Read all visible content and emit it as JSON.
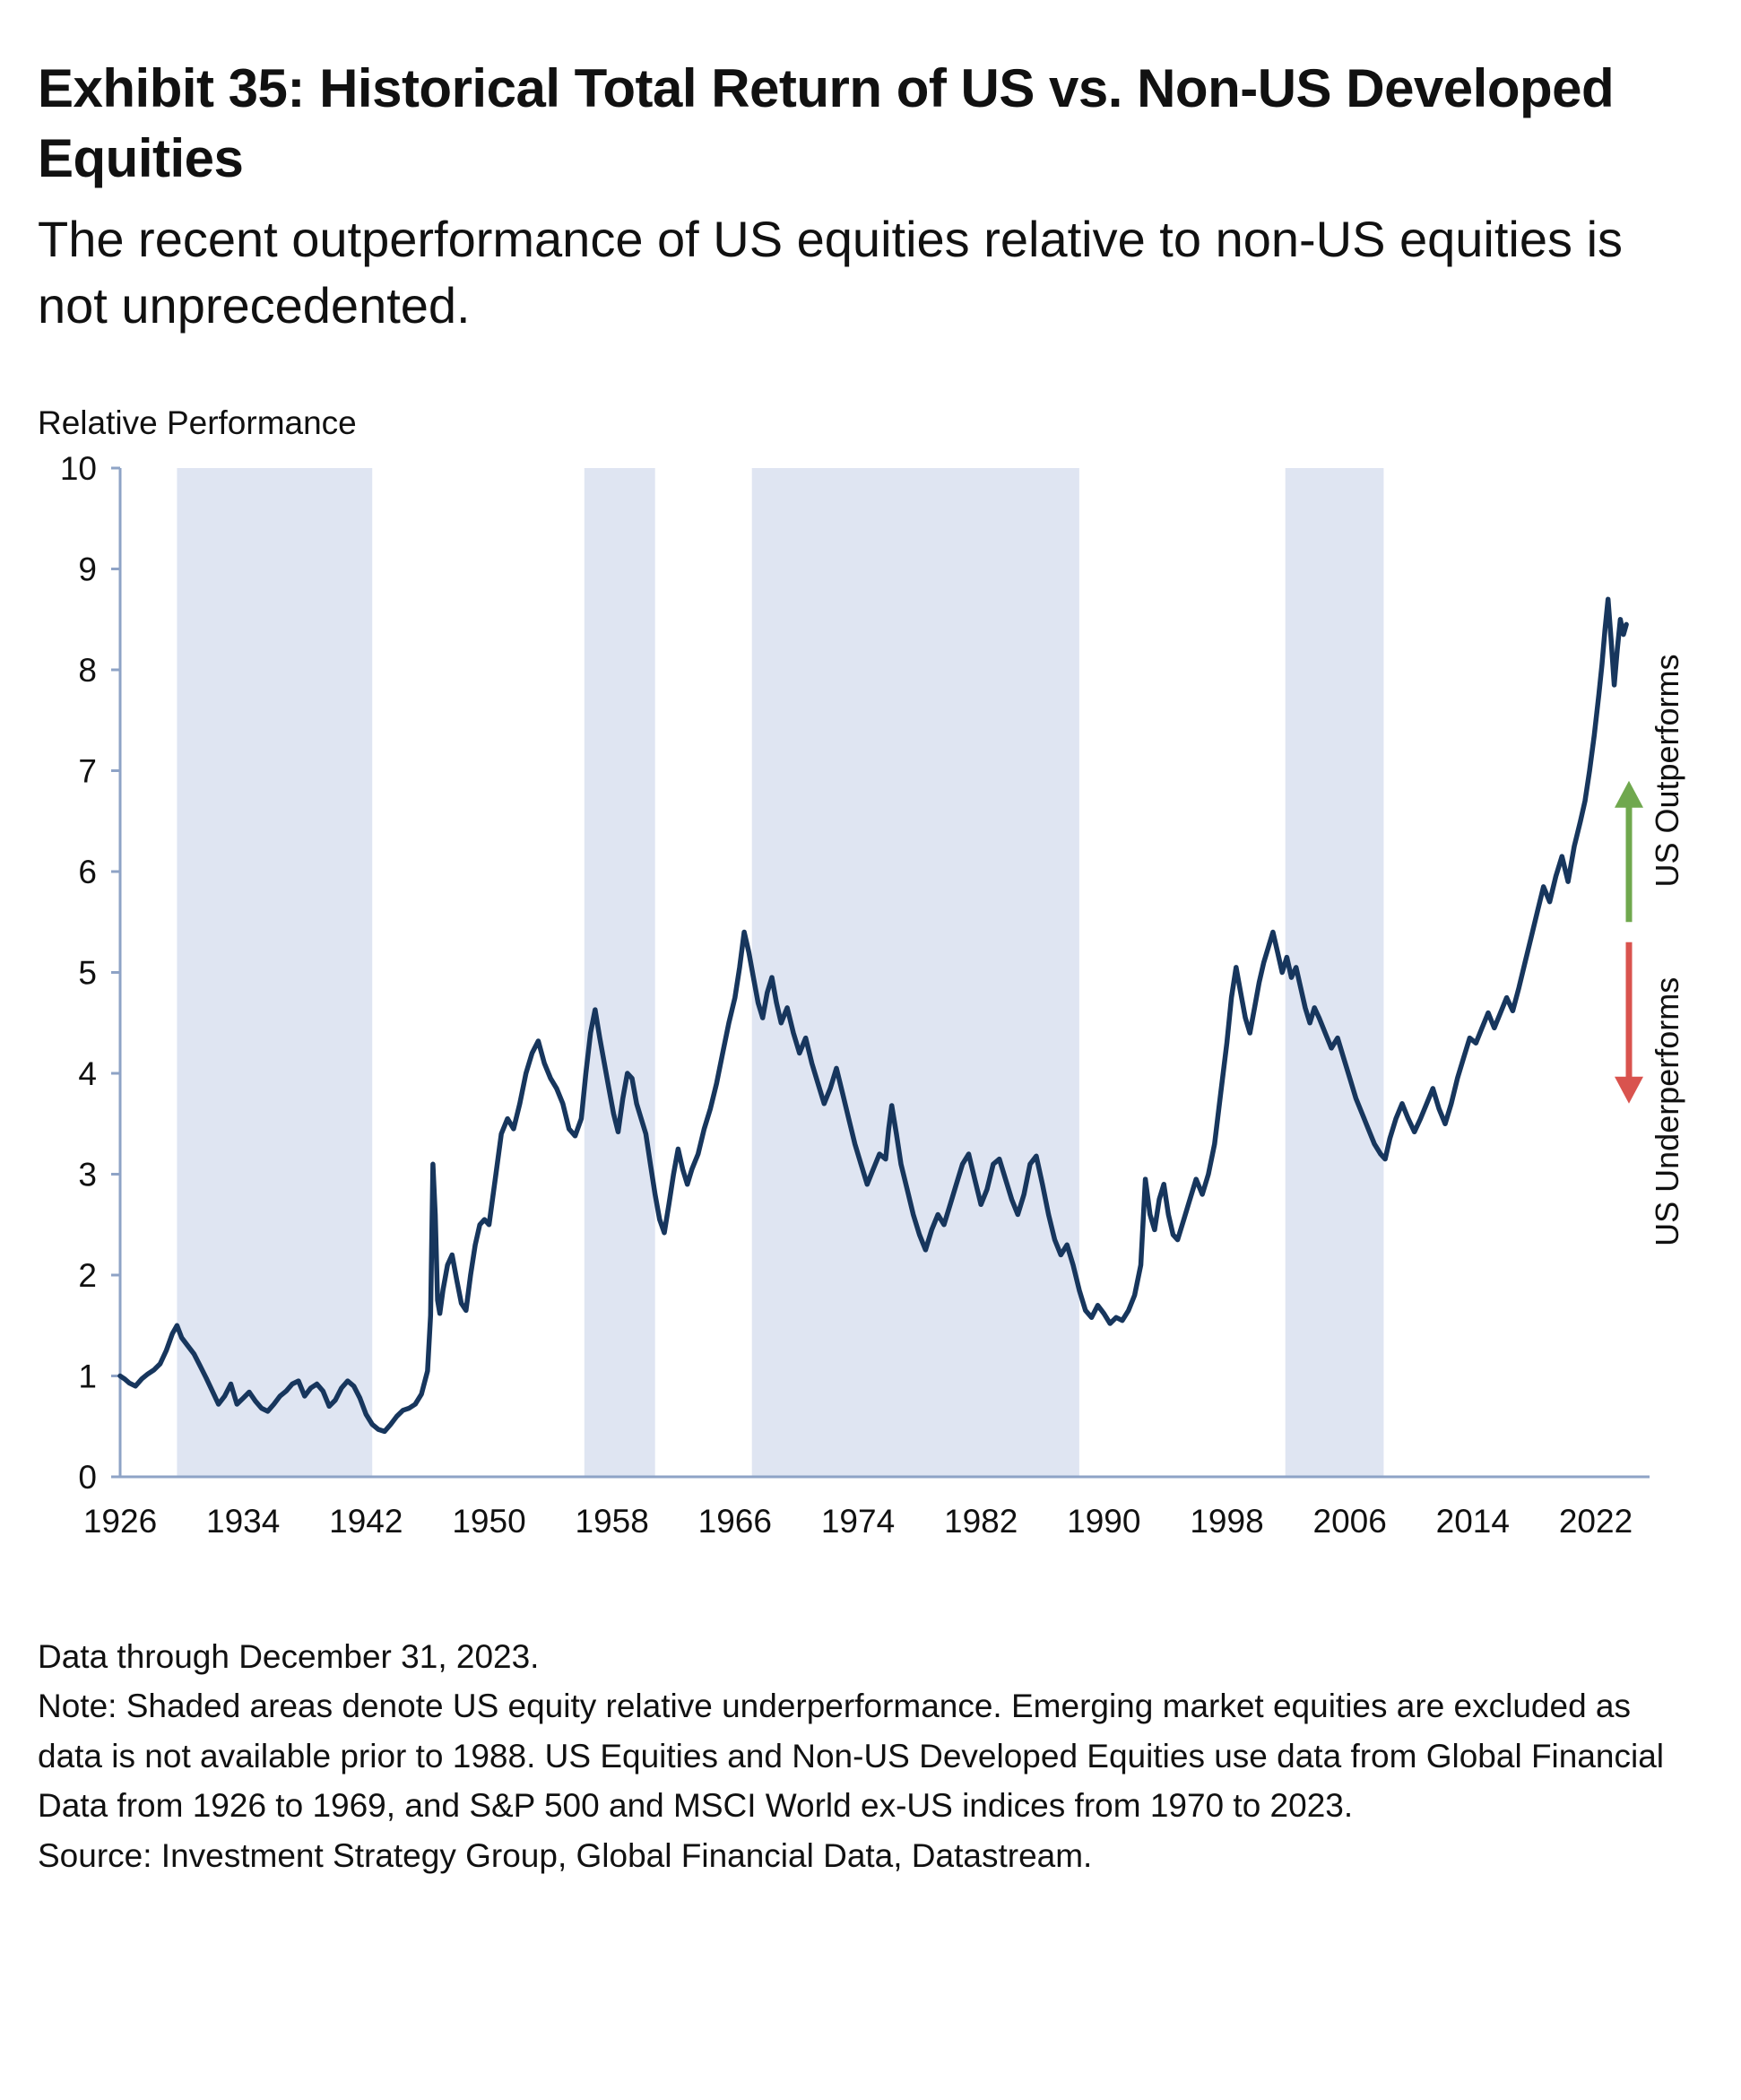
{
  "page": {
    "title": "Exhibit 35: Historical Total Return of US vs. Non-US Developed Equities",
    "subtitle": "The recent outperformance of US equities relative to non-US equities is not unprecedented.",
    "axis_title": "Relative Performance",
    "footnotes": [
      "Data through December 31, 2023.",
      "Note: Shaded areas denote US equity relative underperformance. Emerging market equities are excluded as data is not available prior to 1988. US Equities and Non-US Developed Equities use data from Global Financial Data from 1926 to 1969, and S&P 500 and MSCI World ex-US indices from 1970 to 2023.",
      "Source: Investment Strategy Group, Global Financial Data, Datastream."
    ]
  },
  "chart_data": {
    "type": "line",
    "title": "Historical Total Return of US vs. Non-US Developed Equities",
    "xlabel": "",
    "ylabel": "Relative Performance",
    "ylim": [
      0,
      10
    ],
    "xlim": [
      1926,
      2025.5
    ],
    "grid": false,
    "legend": "none",
    "x_ticks": [
      1926,
      1934,
      1942,
      1950,
      1958,
      1966,
      1974,
      1982,
      1990,
      1998,
      2006,
      2014,
      2022
    ],
    "y_ticks": [
      0,
      1,
      2,
      3,
      4,
      5,
      6,
      7,
      8,
      9,
      10
    ],
    "shaded_bands": [
      {
        "start": 1929.7,
        "end": 1942.4,
        "meaning": "US equity relative underperformance"
      },
      {
        "start": 1956.2,
        "end": 1960.8,
        "meaning": "US equity relative underperformance"
      },
      {
        "start": 1967.1,
        "end": 1988.4,
        "meaning": "US equity relative underperformance"
      },
      {
        "start": 2001.8,
        "end": 2008.2,
        "meaning": "US equity relative underperformance"
      }
    ],
    "annotations": [
      {
        "text": "US Outperforms",
        "arrow": "up",
        "color": "#70a84e",
        "arrow_span_values": [
          5.5,
          6.9
        ],
        "label_center_value": 7.0
      },
      {
        "text": "US Underperforms",
        "arrow": "down",
        "color": "#d9534e",
        "arrow_span_values": [
          5.3,
          3.7
        ],
        "label_center_value": 3.62
      }
    ],
    "colors": {
      "line": "#17365d",
      "band": "#dfe5f2",
      "axis": "#8ea3c6",
      "up_arrow": "#70a84e",
      "down_arrow": "#d9534e",
      "text": "#111111"
    },
    "series": [
      {
        "name": "US vs. Non-US Developed Equities relative total return",
        "points": [
          [
            1926,
            1.0
          ],
          [
            1926.3,
            0.97
          ],
          [
            1926.6,
            0.93
          ],
          [
            1927,
            0.9
          ],
          [
            1927.4,
            0.97
          ],
          [
            1927.8,
            1.02
          ],
          [
            1928.2,
            1.06
          ],
          [
            1928.6,
            1.12
          ],
          [
            1929,
            1.25
          ],
          [
            1929.4,
            1.42
          ],
          [
            1929.7,
            1.5
          ],
          [
            1930,
            1.38
          ],
          [
            1930.4,
            1.3
          ],
          [
            1930.8,
            1.22
          ],
          [
            1931.2,
            1.1
          ],
          [
            1931.6,
            0.98
          ],
          [
            1932,
            0.85
          ],
          [
            1932.4,
            0.72
          ],
          [
            1932.8,
            0.8
          ],
          [
            1933.2,
            0.92
          ],
          [
            1933.6,
            0.72
          ],
          [
            1934,
            0.78
          ],
          [
            1934.4,
            0.84
          ],
          [
            1934.8,
            0.75
          ],
          [
            1935.2,
            0.68
          ],
          [
            1935.6,
            0.65
          ],
          [
            1936,
            0.72
          ],
          [
            1936.4,
            0.8
          ],
          [
            1936.8,
            0.85
          ],
          [
            1937.2,
            0.92
          ],
          [
            1937.6,
            0.95
          ],
          [
            1938,
            0.8
          ],
          [
            1938.4,
            0.88
          ],
          [
            1938.8,
            0.92
          ],
          [
            1939.2,
            0.85
          ],
          [
            1939.6,
            0.7
          ],
          [
            1940,
            0.76
          ],
          [
            1940.4,
            0.88
          ],
          [
            1940.8,
            0.95
          ],
          [
            1941.2,
            0.9
          ],
          [
            1941.6,
            0.78
          ],
          [
            1942,
            0.62
          ],
          [
            1942.4,
            0.52
          ],
          [
            1942.8,
            0.47
          ],
          [
            1943.2,
            0.45
          ],
          [
            1943.6,
            0.52
          ],
          [
            1944,
            0.6
          ],
          [
            1944.4,
            0.66
          ],
          [
            1944.8,
            0.68
          ],
          [
            1945.2,
            0.72
          ],
          [
            1945.6,
            0.82
          ],
          [
            1946,
            1.05
          ],
          [
            1946.2,
            1.6
          ],
          [
            1946.35,
            3.1
          ],
          [
            1946.5,
            2.6
          ],
          [
            1946.65,
            1.75
          ],
          [
            1946.8,
            1.62
          ],
          [
            1947,
            1.85
          ],
          [
            1947.3,
            2.1
          ],
          [
            1947.6,
            2.2
          ],
          [
            1947.9,
            1.95
          ],
          [
            1948.2,
            1.72
          ],
          [
            1948.5,
            1.65
          ],
          [
            1948.8,
            2.0
          ],
          [
            1949.1,
            2.3
          ],
          [
            1949.4,
            2.5
          ],
          [
            1949.7,
            2.55
          ],
          [
            1950,
            2.5
          ],
          [
            1950.4,
            2.95
          ],
          [
            1950.8,
            3.4
          ],
          [
            1951.2,
            3.55
          ],
          [
            1951.6,
            3.45
          ],
          [
            1952,
            3.7
          ],
          [
            1952.4,
            4.0
          ],
          [
            1952.8,
            4.2
          ],
          [
            1953.2,
            4.32
          ],
          [
            1953.6,
            4.1
          ],
          [
            1954,
            3.95
          ],
          [
            1954.4,
            3.85
          ],
          [
            1954.8,
            3.7
          ],
          [
            1955.2,
            3.45
          ],
          [
            1955.6,
            3.38
          ],
          [
            1956,
            3.55
          ],
          [
            1956.3,
            4.0
          ],
          [
            1956.6,
            4.4
          ],
          [
            1956.9,
            4.63
          ],
          [
            1957.2,
            4.35
          ],
          [
            1957.5,
            4.1
          ],
          [
            1957.8,
            3.85
          ],
          [
            1958.1,
            3.6
          ],
          [
            1958.4,
            3.42
          ],
          [
            1958.7,
            3.75
          ],
          [
            1959,
            4.0
          ],
          [
            1959.3,
            3.95
          ],
          [
            1959.6,
            3.7
          ],
          [
            1959.9,
            3.55
          ],
          [
            1960.2,
            3.4
          ],
          [
            1960.5,
            3.1
          ],
          [
            1960.8,
            2.8
          ],
          [
            1961.1,
            2.55
          ],
          [
            1961.4,
            2.42
          ],
          [
            1961.7,
            2.7
          ],
          [
            1962,
            3.0
          ],
          [
            1962.3,
            3.25
          ],
          [
            1962.6,
            3.05
          ],
          [
            1962.9,
            2.9
          ],
          [
            1963.2,
            3.05
          ],
          [
            1963.6,
            3.2
          ],
          [
            1964,
            3.45
          ],
          [
            1964.4,
            3.65
          ],
          [
            1964.8,
            3.9
          ],
          [
            1965.2,
            4.2
          ],
          [
            1965.6,
            4.5
          ],
          [
            1966,
            4.75
          ],
          [
            1966.3,
            5.05
          ],
          [
            1966.6,
            5.4
          ],
          [
            1966.9,
            5.2
          ],
          [
            1967.2,
            4.95
          ],
          [
            1967.5,
            4.7
          ],
          [
            1967.8,
            4.55
          ],
          [
            1968.1,
            4.8
          ],
          [
            1968.4,
            4.95
          ],
          [
            1968.7,
            4.7
          ],
          [
            1969,
            4.5
          ],
          [
            1969.4,
            4.65
          ],
          [
            1969.8,
            4.4
          ],
          [
            1970.2,
            4.2
          ],
          [
            1970.6,
            4.35
          ],
          [
            1971,
            4.1
          ],
          [
            1971.4,
            3.9
          ],
          [
            1971.8,
            3.7
          ],
          [
            1972.2,
            3.85
          ],
          [
            1972.6,
            4.05
          ],
          [
            1973,
            3.8
          ],
          [
            1973.4,
            3.55
          ],
          [
            1973.8,
            3.3
          ],
          [
            1974.2,
            3.1
          ],
          [
            1974.6,
            2.9
          ],
          [
            1975,
            3.05
          ],
          [
            1975.4,
            3.2
          ],
          [
            1975.8,
            3.15
          ],
          [
            1976,
            3.45
          ],
          [
            1976.2,
            3.68
          ],
          [
            1976.5,
            3.4
          ],
          [
            1976.8,
            3.1
          ],
          [
            1977.2,
            2.85
          ],
          [
            1977.6,
            2.6
          ],
          [
            1978,
            2.4
          ],
          [
            1978.4,
            2.25
          ],
          [
            1978.8,
            2.45
          ],
          [
            1979.2,
            2.6
          ],
          [
            1979.6,
            2.5
          ],
          [
            1980,
            2.7
          ],
          [
            1980.4,
            2.9
          ],
          [
            1980.8,
            3.1
          ],
          [
            1981.2,
            3.2
          ],
          [
            1981.6,
            2.95
          ],
          [
            1982,
            2.7
          ],
          [
            1982.4,
            2.85
          ],
          [
            1982.8,
            3.1
          ],
          [
            1983.2,
            3.15
          ],
          [
            1983.6,
            2.95
          ],
          [
            1984,
            2.75
          ],
          [
            1984.4,
            2.6
          ],
          [
            1984.8,
            2.8
          ],
          [
            1985.2,
            3.1
          ],
          [
            1985.6,
            3.18
          ],
          [
            1986,
            2.9
          ],
          [
            1986.4,
            2.6
          ],
          [
            1986.8,
            2.35
          ],
          [
            1987.2,
            2.2
          ],
          [
            1987.6,
            2.3
          ],
          [
            1988,
            2.1
          ],
          [
            1988.4,
            1.85
          ],
          [
            1988.8,
            1.65
          ],
          [
            1989.2,
            1.58
          ],
          [
            1989.6,
            1.7
          ],
          [
            1990,
            1.62
          ],
          [
            1990.4,
            1.52
          ],
          [
            1990.8,
            1.58
          ],
          [
            1991.2,
            1.55
          ],
          [
            1991.6,
            1.65
          ],
          [
            1992,
            1.8
          ],
          [
            1992.4,
            2.1
          ],
          [
            1992.7,
            2.95
          ],
          [
            1993,
            2.6
          ],
          [
            1993.3,
            2.45
          ],
          [
            1993.6,
            2.75
          ],
          [
            1993.9,
            2.9
          ],
          [
            1994.2,
            2.6
          ],
          [
            1994.5,
            2.4
          ],
          [
            1994.8,
            2.35
          ],
          [
            1995.2,
            2.55
          ],
          [
            1995.6,
            2.75
          ],
          [
            1996,
            2.95
          ],
          [
            1996.4,
            2.8
          ],
          [
            1996.8,
            3.0
          ],
          [
            1997.2,
            3.3
          ],
          [
            1997.6,
            3.8
          ],
          [
            1998,
            4.3
          ],
          [
            1998.3,
            4.75
          ],
          [
            1998.6,
            5.05
          ],
          [
            1998.9,
            4.8
          ],
          [
            1999.2,
            4.55
          ],
          [
            1999.5,
            4.4
          ],
          [
            1999.8,
            4.65
          ],
          [
            2000.1,
            4.9
          ],
          [
            2000.4,
            5.1
          ],
          [
            2000.7,
            5.25
          ],
          [
            2001,
            5.4
          ],
          [
            2001.3,
            5.2
          ],
          [
            2001.6,
            5.0
          ],
          [
            2001.9,
            5.15
          ],
          [
            2002.2,
            4.95
          ],
          [
            2002.5,
            5.05
          ],
          [
            2002.8,
            4.85
          ],
          [
            2003.1,
            4.65
          ],
          [
            2003.4,
            4.5
          ],
          [
            2003.7,
            4.65
          ],
          [
            2004,
            4.55
          ],
          [
            2004.4,
            4.4
          ],
          [
            2004.8,
            4.25
          ],
          [
            2005.2,
            4.35
          ],
          [
            2005.6,
            4.15
          ],
          [
            2006,
            3.95
          ],
          [
            2006.4,
            3.75
          ],
          [
            2006.8,
            3.6
          ],
          [
            2007.2,
            3.45
          ],
          [
            2007.6,
            3.3
          ],
          [
            2008,
            3.2
          ],
          [
            2008.3,
            3.15
          ],
          [
            2008.6,
            3.35
          ],
          [
            2009,
            3.55
          ],
          [
            2009.4,
            3.7
          ],
          [
            2009.8,
            3.55
          ],
          [
            2010.2,
            3.42
          ],
          [
            2010.6,
            3.55
          ],
          [
            2011,
            3.7
          ],
          [
            2011.4,
            3.85
          ],
          [
            2011.8,
            3.65
          ],
          [
            2012.2,
            3.5
          ],
          [
            2012.6,
            3.7
          ],
          [
            2013,
            3.95
          ],
          [
            2013.4,
            4.15
          ],
          [
            2013.8,
            4.35
          ],
          [
            2014.2,
            4.3
          ],
          [
            2014.6,
            4.45
          ],
          [
            2015,
            4.6
          ],
          [
            2015.4,
            4.45
          ],
          [
            2015.8,
            4.6
          ],
          [
            2016.2,
            4.75
          ],
          [
            2016.6,
            4.62
          ],
          [
            2017,
            4.85
          ],
          [
            2017.4,
            5.1
          ],
          [
            2017.8,
            5.35
          ],
          [
            2018.2,
            5.6
          ],
          [
            2018.6,
            5.85
          ],
          [
            2019,
            5.7
          ],
          [
            2019.4,
            5.95
          ],
          [
            2019.8,
            6.15
          ],
          [
            2020.2,
            5.9
          ],
          [
            2020.6,
            6.25
          ],
          [
            2021,
            6.5
          ],
          [
            2021.3,
            6.7
          ],
          [
            2021.6,
            7.0
          ],
          [
            2021.9,
            7.35
          ],
          [
            2022.2,
            7.75
          ],
          [
            2022.4,
            8.05
          ],
          [
            2022.6,
            8.4
          ],
          [
            2022.8,
            8.7
          ],
          [
            2023,
            8.3
          ],
          [
            2023.2,
            7.85
          ],
          [
            2023.4,
            8.2
          ],
          [
            2023.6,
            8.5
          ],
          [
            2023.8,
            8.35
          ],
          [
            2023.99,
            8.45
          ]
        ]
      }
    ]
  }
}
